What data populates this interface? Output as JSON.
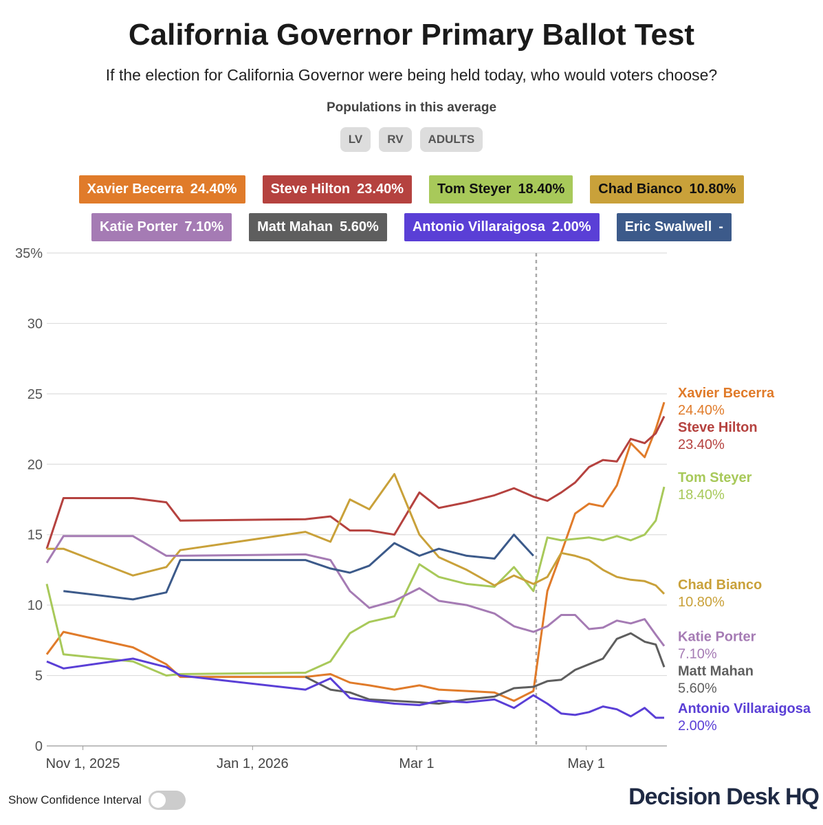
{
  "title": "California Governor Primary Ballot Test",
  "subtitle": "If the election for California Governor were being held today, who would voters choose?",
  "populations_label": "Populations in this average",
  "populations": [
    "LV",
    "RV",
    "ADULTS"
  ],
  "toggle_label": "Show Confidence Interval",
  "brand": "Decision Desk HQ",
  "chart_data": {
    "type": "line",
    "x": [
      "2025-10-19",
      "2025-10-25",
      "2025-11-19",
      "2025-12-01",
      "2025-12-06",
      "2026-01-20",
      "2026-01-29",
      "2026-02-05",
      "2026-02-12",
      "2026-02-21",
      "2026-03-02",
      "2026-03-09",
      "2026-03-19",
      "2026-03-29",
      "2026-04-05",
      "2026-04-12",
      "2026-04-17",
      "2026-04-22",
      "2026-04-27",
      "2026-05-02",
      "2026-05-07",
      "2026-05-12",
      "2026-05-17",
      "2026-05-22",
      "2026-05-26",
      "2026-05-29"
    ],
    "xlim": [
      "2025-10-19",
      "2026-05-30"
    ],
    "xticks": [
      {
        "value": "2025-11-01",
        "label": "Nov 1, 2025"
      },
      {
        "value": "2026-01-01",
        "label": "Jan 1, 2026"
      },
      {
        "value": "2026-03-01",
        "label": "Mar 1"
      },
      {
        "value": "2026-05-01",
        "label": "May 1"
      }
    ],
    "ylim": [
      0,
      35
    ],
    "yticks": [
      0,
      5,
      10,
      15,
      20,
      25,
      30,
      {
        "value": 35,
        "label": "35%"
      }
    ],
    "grid": true,
    "vline": "2026-04-13",
    "series": [
      {
        "name": "Xavier Becerra",
        "color": "#e07b2a",
        "end_label": "24.40%",
        "values": [
          6.5,
          8.1,
          7.0,
          5.8,
          4.9,
          4.9,
          5.1,
          4.5,
          4.3,
          4.0,
          4.3,
          4.0,
          3.9,
          3.8,
          3.2,
          3.9,
          11.0,
          13.7,
          16.5,
          17.2,
          17.0,
          18.5,
          21.5,
          20.5,
          22.5,
          24.4
        ]
      },
      {
        "name": "Steve Hilton",
        "color": "#b5423f",
        "end_label": "23.40%",
        "values": [
          14.0,
          17.6,
          17.6,
          17.3,
          16.0,
          16.1,
          16.3,
          15.3,
          15.3,
          15.0,
          18.0,
          16.9,
          17.3,
          17.8,
          18.3,
          17.7,
          17.4,
          18.0,
          18.7,
          19.8,
          20.3,
          20.2,
          21.8,
          21.5,
          22.2,
          23.4
        ]
      },
      {
        "name": "Tom Steyer",
        "color": "#a8c95a",
        "end_label": "18.40%",
        "values": [
          11.5,
          6.5,
          6.0,
          5.0,
          5.1,
          5.2,
          6.0,
          8.0,
          8.8,
          9.2,
          12.9,
          12.0,
          11.5,
          11.3,
          12.7,
          11.0,
          14.8,
          14.6,
          14.7,
          14.8,
          14.6,
          14.9,
          14.6,
          15.0,
          16.0,
          18.4
        ]
      },
      {
        "name": "Chad Bianco",
        "color": "#c9a13a",
        "end_label": "10.80%",
        "values": [
          14.0,
          14.0,
          12.1,
          12.7,
          13.9,
          15.2,
          14.5,
          17.5,
          16.8,
          19.3,
          15.0,
          13.4,
          12.5,
          11.4,
          12.1,
          11.5,
          12.0,
          13.7,
          13.5,
          13.2,
          12.5,
          12.0,
          11.8,
          11.7,
          11.4,
          10.8
        ]
      },
      {
        "name": "Katie Porter",
        "color": "#a57bb4",
        "end_label": "7.10%",
        "values": [
          13.0,
          14.9,
          14.9,
          13.5,
          13.5,
          13.6,
          13.2,
          11.0,
          9.8,
          10.3,
          11.2,
          10.3,
          10.0,
          9.4,
          8.5,
          8.1,
          8.5,
          9.3,
          9.3,
          8.3,
          8.4,
          8.9,
          8.7,
          9.0,
          7.9,
          7.1
        ]
      },
      {
        "name": "Matt Mahan",
        "color": "#5e5e5e",
        "end_label": "5.60%",
        "values": [
          null,
          null,
          null,
          null,
          null,
          4.9,
          4.0,
          3.8,
          3.3,
          3.2,
          3.1,
          3.0,
          3.3,
          3.5,
          4.1,
          4.2,
          4.6,
          4.7,
          5.4,
          5.8,
          6.2,
          7.6,
          8.0,
          7.4,
          7.2,
          5.6
        ]
      },
      {
        "name": "Antonio Villaraigosa",
        "color": "#5a3fd6",
        "end_label": "2.00%",
        "values": [
          6.0,
          5.5,
          6.2,
          5.6,
          5.0,
          4.0,
          4.8,
          3.4,
          3.2,
          3.0,
          2.9,
          3.2,
          3.1,
          3.3,
          2.7,
          3.6,
          3.0,
          2.3,
          2.2,
          2.4,
          2.8,
          2.6,
          2.1,
          2.7,
          2.0,
          2.0
        ]
      },
      {
        "name": "Eric Swalwell",
        "color": "#3c5a8a",
        "end_label": "-",
        "values": [
          null,
          11.0,
          10.4,
          10.9,
          13.2,
          13.2,
          12.6,
          12.3,
          12.8,
          14.4,
          13.5,
          14.0,
          13.5,
          13.3,
          15.0,
          13.5,
          null,
          null,
          null,
          null,
          null,
          null,
          null,
          null,
          null,
          null
        ]
      }
    ]
  }
}
